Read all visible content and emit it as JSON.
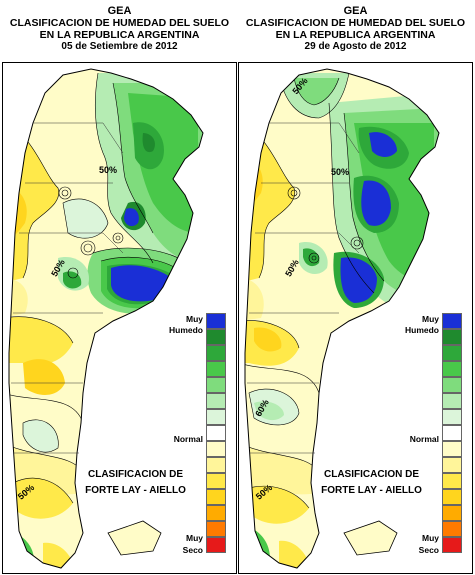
{
  "panels": [
    {
      "org": "GEA",
      "title1": "CLASIFICACION DE HUMEDAD DEL SUELO",
      "title2": "EN LA REPUBLICA ARGENTINA",
      "date": "05 de Setiembre de 2012",
      "contour_labels": [
        "50%",
        "50%",
        "50%"
      ],
      "method_line1": "CLASIFICACION DE",
      "method_line2": "FORTE LAY - AIELLO"
    },
    {
      "org": "GEA",
      "title1": "CLASIFICACION DE HUMEDAD DEL SUELO",
      "title2": "EN LA REPUBLICA ARGENTINA",
      "date": "29 de Agosto de 2012",
      "contour_labels": [
        "50%",
        "50%",
        "50%",
        "60%",
        "50%"
      ],
      "method_line1": "CLASIFICACION DE",
      "method_line2": "FORTE LAY - AIELLO"
    }
  ],
  "legend": {
    "wet_label_1": "Muy",
    "wet_label_2": "Humedo",
    "normal_label": "Normal",
    "dry_label_1": "Muy",
    "dry_label_2": "Seco",
    "colors": [
      "#1a2fd6",
      "#1f8a2e",
      "#2ea83a",
      "#49c84a",
      "#7fdc7d",
      "#b5ecb3",
      "#dcf5da",
      "#ffffff",
      "#fffcc8",
      "#fff59a",
      "#ffe94a",
      "#ffd51e",
      "#ffab00",
      "#ff7a00",
      "#e61a1a"
    ]
  }
}
